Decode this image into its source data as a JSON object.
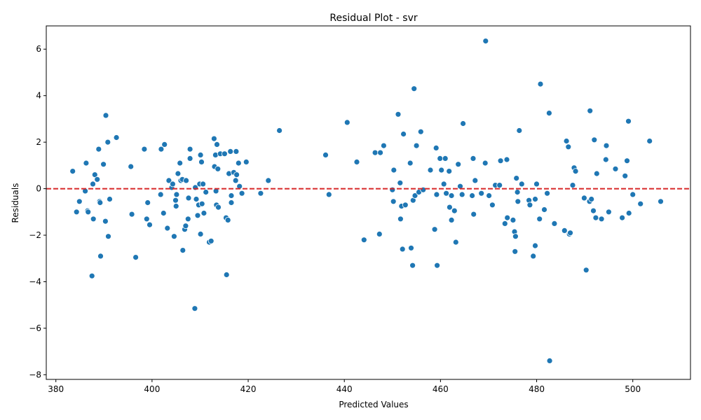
{
  "chart_data": {
    "type": "scatter",
    "title": "Residual Plot - svr",
    "xlabel": "Predicted Values",
    "ylabel": "Residuals",
    "xlim": [
      378,
      512
    ],
    "ylim": [
      -8.2,
      7
    ],
    "xticks": [
      380,
      400,
      420,
      440,
      460,
      480,
      500
    ],
    "yticks": [
      -8,
      -6,
      -4,
      -2,
      0,
      2,
      4,
      6
    ],
    "grid": false,
    "point_color": "#1f77b4",
    "zero_line": {
      "y": 0,
      "color": "#d62728",
      "style": "dashed"
    },
    "points": [
      [
        383.5,
        0.75
      ],
      [
        384.3,
        -1.0
      ],
      [
        384.9,
        -0.55
      ],
      [
        386.1,
        -0.1
      ],
      [
        386.3,
        1.1
      ],
      [
        386.6,
        -0.95
      ],
      [
        386.7,
        -1.0
      ],
      [
        387.5,
        -3.75
      ],
      [
        387.7,
        0.2
      ],
      [
        387.8,
        -1.3
      ],
      [
        388.1,
        0.6
      ],
      [
        388.6,
        0.4
      ],
      [
        388.9,
        1.7
      ],
      [
        389.1,
        -0.55
      ],
      [
        389.2,
        -0.6
      ],
      [
        389.3,
        -2.9
      ],
      [
        389.9,
        1.05
      ],
      [
        390.3,
        -1.4
      ],
      [
        390.4,
        3.15
      ],
      [
        390.8,
        2.0
      ],
      [
        390.9,
        -2.05
      ],
      [
        391.2,
        -0.45
      ],
      [
        392.6,
        2.2
      ],
      [
        395.6,
        0.95
      ],
      [
        395.8,
        -1.1
      ],
      [
        396.6,
        -2.95
      ],
      [
        398.4,
        1.7
      ],
      [
        398.9,
        -1.3
      ],
      [
        399.1,
        -0.6
      ],
      [
        399.5,
        -1.55
      ],
      [
        401.8,
        -0.25
      ],
      [
        401.9,
        1.7
      ],
      [
        402.4,
        -1.05
      ],
      [
        402.6,
        1.9
      ],
      [
        403.2,
        -1.7
      ],
      [
        403.5,
        0.35
      ],
      [
        404.1,
        0.05
      ],
      [
        404.3,
        0.2
      ],
      [
        404.6,
        -2.05
      ],
      [
        404.9,
        -0.5
      ],
      [
        405.0,
        -0.75
      ],
      [
        405.1,
        -0.25
      ],
      [
        405.4,
        0.65
      ],
      [
        405.8,
        1.1
      ],
      [
        406.0,
        0.35
      ],
      [
        406.3,
        0.4
      ],
      [
        406.4,
        -2.65
      ],
      [
        406.8,
        -1.75
      ],
      [
        407.0,
        -1.6
      ],
      [
        407.1,
        0.35
      ],
      [
        407.5,
        -1.3
      ],
      [
        407.6,
        -0.4
      ],
      [
        407.9,
        1.7
      ],
      [
        407.9,
        1.3
      ],
      [
        408.9,
        -5.15
      ],
      [
        409.0,
        0.05
      ],
      [
        409.2,
        -0.45
      ],
      [
        409.5,
        -1.15
      ],
      [
        409.7,
        -0.7
      ],
      [
        409.9,
        0.2
      ],
      [
        410.1,
        1.45
      ],
      [
        410.1,
        -1.95
      ],
      [
        410.3,
        1.15
      ],
      [
        410.4,
        -0.65
      ],
      [
        410.6,
        0.2
      ],
      [
        410.8,
        -1.05
      ],
      [
        411.2,
        -0.15
      ],
      [
        411.9,
        -2.3
      ],
      [
        412.3,
        -2.25
      ],
      [
        412.9,
        2.15
      ],
      [
        413.0,
        0.95
      ],
      [
        413.2,
        1.45
      ],
      [
        413.3,
        -0.1
      ],
      [
        413.4,
        -0.7
      ],
      [
        413.5,
        1.9
      ],
      [
        413.7,
        0.85
      ],
      [
        413.8,
        -0.8
      ],
      [
        414.2,
        1.5
      ],
      [
        415.1,
        1.5
      ],
      [
        415.4,
        -1.25
      ],
      [
        415.5,
        -3.7
      ],
      [
        415.8,
        -1.35
      ],
      [
        416.0,
        0.65
      ],
      [
        416.3,
        1.6
      ],
      [
        416.5,
        -0.3
      ],
      [
        416.5,
        -0.6
      ],
      [
        417.0,
        0.7
      ],
      [
        417.5,
        1.6
      ],
      [
        417.4,
        0.35
      ],
      [
        417.6,
        0.6
      ],
      [
        418.0,
        1.1
      ],
      [
        418.2,
        0.1
      ],
      [
        418.7,
        -0.2
      ],
      [
        419.6,
        1.15
      ],
      [
        422.6,
        -0.2
      ],
      [
        424.2,
        0.35
      ],
      [
        426.5,
        2.5
      ],
      [
        436.1,
        1.45
      ],
      [
        436.8,
        -0.25
      ],
      [
        440.6,
        2.85
      ],
      [
        442.6,
        1.15
      ],
      [
        444.1,
        -2.2
      ],
      [
        446.4,
        1.55
      ],
      [
        447.3,
        -1.95
      ],
      [
        447.5,
        1.55
      ],
      [
        448.2,
        1.85
      ],
      [
        450.0,
        -0.05
      ],
      [
        450.3,
        0.8
      ],
      [
        450.2,
        -0.55
      ],
      [
        451.2,
        3.2
      ],
      [
        451.6,
        0.25
      ],
      [
        451.7,
        -1.3
      ],
      [
        451.9,
        -0.75
      ],
      [
        452.1,
        -2.6
      ],
      [
        452.3,
        2.35
      ],
      [
        452.7,
        -0.7
      ],
      [
        453.7,
        1.1
      ],
      [
        453.9,
        -2.55
      ],
      [
        454.2,
        -3.3
      ],
      [
        454.3,
        -0.5
      ],
      [
        454.5,
        4.3
      ],
      [
        454.7,
        -0.3
      ],
      [
        455.0,
        1.85
      ],
      [
        455.5,
        -0.15
      ],
      [
        455.9,
        2.45
      ],
      [
        456.4,
        -0.05
      ],
      [
        457.9,
        0.8
      ],
      [
        458.8,
        -1.75
      ],
      [
        459.1,
        1.75
      ],
      [
        459.3,
        -3.3
      ],
      [
        459.2,
        -0.25
      ],
      [
        459.9,
        1.3
      ],
      [
        460.2,
        0.8
      ],
      [
        460.7,
        0.2
      ],
      [
        461.0,
        1.3
      ],
      [
        461.2,
        -0.2
      ],
      [
        461.8,
        0.75
      ],
      [
        461.9,
        -0.8
      ],
      [
        462.3,
        -1.35
      ],
      [
        462.3,
        -0.3
      ],
      [
        462.9,
        -0.95
      ],
      [
        463.2,
        -2.3
      ],
      [
        463.7,
        1.05
      ],
      [
        464.1,
        0.1
      ],
      [
        464.5,
        -0.25
      ],
      [
        464.7,
        2.8
      ],
      [
        466.6,
        -0.3
      ],
      [
        466.8,
        1.3
      ],
      [
        466.9,
        -1.1
      ],
      [
        467.2,
        0.35
      ],
      [
        468.5,
        -0.2
      ],
      [
        469.3,
        1.1
      ],
      [
        469.4,
        6.35
      ],
      [
        470.1,
        -0.3
      ],
      [
        470.8,
        -0.7
      ],
      [
        471.4,
        0.15
      ],
      [
        472.3,
        0.15
      ],
      [
        472.5,
        1.2
      ],
      [
        473.4,
        -1.5
      ],
      [
        473.8,
        1.25
      ],
      [
        473.9,
        -1.25
      ],
      [
        475.1,
        -1.35
      ],
      [
        475.4,
        -1.85
      ],
      [
        475.5,
        -2.7
      ],
      [
        475.6,
        -2.05
      ],
      [
        475.8,
        0.45
      ],
      [
        476.0,
        -0.15
      ],
      [
        476.1,
        -0.55
      ],
      [
        476.4,
        2.5
      ],
      [
        476.9,
        0.2
      ],
      [
        478.4,
        -0.5
      ],
      [
        478.6,
        -0.7
      ],
      [
        479.3,
        -2.9
      ],
      [
        479.7,
        -0.45
      ],
      [
        479.7,
        -2.45
      ],
      [
        480.0,
        0.2
      ],
      [
        480.6,
        -1.3
      ],
      [
        480.8,
        4.5
      ],
      [
        481.6,
        -0.9
      ],
      [
        482.2,
        -0.2
      ],
      [
        482.6,
        3.25
      ],
      [
        482.7,
        -7.4
      ],
      [
        483.7,
        -1.5
      ],
      [
        485.8,
        -1.8
      ],
      [
        486.2,
        2.05
      ],
      [
        486.6,
        1.8
      ],
      [
        486.8,
        -1.95
      ],
      [
        487.0,
        -1.9
      ],
      [
        487.5,
        0.15
      ],
      [
        487.8,
        0.9
      ],
      [
        488.1,
        0.75
      ],
      [
        489.9,
        -0.4
      ],
      [
        490.3,
        -3.5
      ],
      [
        491.0,
        -0.55
      ],
      [
        491.1,
        3.35
      ],
      [
        491.4,
        -0.45
      ],
      [
        491.8,
        -0.95
      ],
      [
        492.0,
        2.1
      ],
      [
        492.3,
        -1.25
      ],
      [
        492.5,
        0.65
      ],
      [
        493.5,
        -1.3
      ],
      [
        494.4,
        1.25
      ],
      [
        494.5,
        1.85
      ],
      [
        495.0,
        -1.0
      ],
      [
        496.4,
        0.85
      ],
      [
        497.8,
        -1.25
      ],
      [
        498.4,
        0.55
      ],
      [
        498.8,
        1.2
      ],
      [
        499.1,
        2.9
      ],
      [
        499.2,
        -1.05
      ],
      [
        500.0,
        -0.25
      ],
      [
        501.6,
        -0.65
      ],
      [
        503.5,
        2.05
      ],
      [
        505.8,
        -0.55
      ]
    ]
  }
}
